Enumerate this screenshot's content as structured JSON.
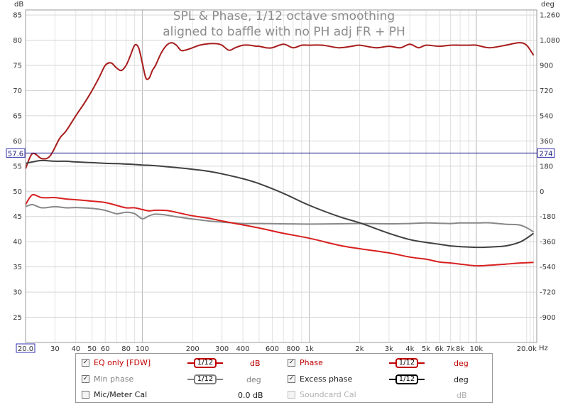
{
  "chart_data": {
    "type": "line",
    "title": "SPL & Phase, 1/12 octave smoothing",
    "subtitle": "aligned to baffle with no PH adj  FR + PH",
    "ylabel": "dB",
    "y2label": "deg",
    "xlabel": "Hz",
    "x_scale": "log",
    "xlim": [
      20,
      23000
    ],
    "ylim": [
      20,
      86
    ],
    "y2lim": [
      -1080,
      1296
    ],
    "y_ticks": [
      25,
      30,
      35,
      40,
      45,
      50,
      55,
      60,
      65,
      70,
      75,
      80,
      85
    ],
    "y2_ticks": [
      -900,
      -720,
      -540,
      -360,
      -180,
      0,
      180,
      360,
      540,
      720,
      900,
      1080,
      1260
    ],
    "y2_tick_labels": [
      "-900",
      "-720",
      "-540",
      "-360",
      "-180",
      "0",
      "180",
      "360",
      "540",
      "720",
      "900",
      "1,080",
      "1,260"
    ],
    "x_ticks": [
      20,
      30,
      40,
      50,
      60,
      80,
      100,
      200,
      300,
      400,
      600,
      800,
      1000,
      2000,
      3000,
      4000,
      5000,
      6000,
      7000,
      8000,
      10000,
      20000
    ],
    "x_tick_labels": [
      "20.0",
      "30",
      "40",
      "50",
      "60",
      "80",
      "100",
      "200",
      "300",
      "400",
      "600",
      "800",
      "1k",
      "2k",
      "3k",
      "4k",
      "5k",
      "6k",
      "7k",
      "8k",
      "10k",
      "20.0k"
    ],
    "cursor": {
      "left_value": "57.6",
      "right_value": "274"
    },
    "grid": true,
    "series": [
      {
        "name": "EQ only [FDW]",
        "axis": "left",
        "color": "#a81c1c",
        "x": [
          20,
          22,
          25,
          28,
          32,
          35,
          40,
          45,
          50,
          55,
          60,
          65,
          70,
          75,
          80,
          85,
          90,
          95,
          100,
          105,
          110,
          115,
          120,
          130,
          140,
          150,
          160,
          170,
          180,
          200,
          220,
          250,
          280,
          300,
          330,
          360,
          400,
          440,
          480,
          500,
          550,
          600,
          700,
          800,
          900,
          1000,
          1200,
          1500,
          1800,
          2000,
          2500,
          3000,
          3500,
          4000,
          4500,
          5000,
          6000,
          7000,
          8000,
          9000,
          10000,
          12000,
          15000,
          18000,
          20000,
          22000
        ],
        "values": [
          54.5,
          57.5,
          56.5,
          57.0,
          60.5,
          62.0,
          65.0,
          67.5,
          70.0,
          72.5,
          75.0,
          75.5,
          74.5,
          74.0,
          75.0,
          77.0,
          79.0,
          78.5,
          75.5,
          72.5,
          72.5,
          74.0,
          75.0,
          77.5,
          79.0,
          79.5,
          79.0,
          78.0,
          78.0,
          78.5,
          79.0,
          79.3,
          79.3,
          79.0,
          78.0,
          78.5,
          79.0,
          79.0,
          78.8,
          78.8,
          78.5,
          78.5,
          79.2,
          78.5,
          79.0,
          79.0,
          79.0,
          78.5,
          78.8,
          79.0,
          78.5,
          78.8,
          78.5,
          79.2,
          78.5,
          79.0,
          78.8,
          79.0,
          79.0,
          79.0,
          79.0,
          78.5,
          79.0,
          79.5,
          79.0,
          77.0
        ]
      },
      {
        "name": "Min phase",
        "axis": "right",
        "color": "#888888",
        "x": [
          20,
          22,
          25,
          30,
          35,
          40,
          50,
          60,
          70,
          80,
          90,
          100,
          110,
          120,
          140,
          160,
          200,
          250,
          300,
          400,
          500,
          700,
          1000,
          1500,
          2000,
          3000,
          4000,
          5000,
          6000,
          7000,
          8000,
          10000,
          12000,
          15000,
          18000,
          20000,
          22000
        ],
        "values": [
          -110,
          -95,
          -118,
          -110,
          -118,
          -116,
          -122,
          -136,
          -160,
          -150,
          -160,
          -196,
          -175,
          -163,
          -170,
          -182,
          -198,
          -212,
          -220,
          -230,
          -230,
          -232,
          -234,
          -232,
          -230,
          -232,
          -230,
          -226,
          -228,
          -230,
          -226,
          -226,
          -225,
          -235,
          -240,
          -260,
          -290
        ]
      },
      {
        "name": "Phase",
        "axis": "right",
        "color": "#d82020",
        "x": [
          20,
          22,
          25,
          30,
          35,
          40,
          50,
          60,
          70,
          80,
          90,
          100,
          110,
          120,
          140,
          160,
          200,
          250,
          300,
          400,
          500,
          700,
          1000,
          1500,
          2000,
          3000,
          4000,
          5000,
          6000,
          7000,
          8000,
          10000,
          12000,
          15000,
          18000,
          20000,
          22000
        ],
        "values": [
          -95,
          -25,
          -45,
          -45,
          -55,
          -60,
          -70,
          -80,
          -100,
          -118,
          -118,
          -130,
          -140,
          -135,
          -137,
          -150,
          -175,
          -192,
          -212,
          -240,
          -262,
          -300,
          -335,
          -385,
          -410,
          -440,
          -470,
          -485,
          -505,
          -512,
          -520,
          -532,
          -528,
          -520,
          -513,
          -510,
          -508
        ]
      },
      {
        "name": "Excess phase",
        "axis": "right",
        "color": "#404040",
        "x": [
          20,
          22,
          25,
          30,
          35,
          40,
          50,
          60,
          70,
          80,
          90,
          100,
          120,
          150,
          200,
          250,
          300,
          400,
          500,
          700,
          1000,
          1500,
          2000,
          3000,
          4000,
          5000,
          6000,
          7000,
          8000,
          10000,
          12000,
          15000,
          18000,
          20000,
          22000
        ],
        "values": [
          200,
          210,
          220,
          215,
          215,
          210,
          205,
          200,
          198,
          195,
          192,
          188,
          183,
          173,
          158,
          143,
          125,
          90,
          55,
          -15,
          -100,
          -180,
          -225,
          -300,
          -345,
          -365,
          -378,
          -390,
          -395,
          -400,
          -398,
          -390,
          -365,
          -335,
          -300
        ]
      }
    ]
  },
  "legend": {
    "eq_label": "EQ only [FDW]",
    "eq_smooth": "1/12",
    "eq_unit": "dB",
    "eq_color": "#c00000",
    "minphase_label": "Min phase",
    "minphase_smooth": "1/12",
    "minphase_unit": "deg",
    "mic_label": "Mic/Meter Cal",
    "mic_value": "0.0 dB",
    "phase_label": "Phase",
    "phase_smooth": "1/12",
    "phase_unit": "deg",
    "phase_color": "#c00000",
    "excess_label": "Excess phase",
    "excess_smooth": "1/12",
    "excess_unit": "deg",
    "sound_label": "Soundcard Cal",
    "sound_unit": "dB"
  }
}
